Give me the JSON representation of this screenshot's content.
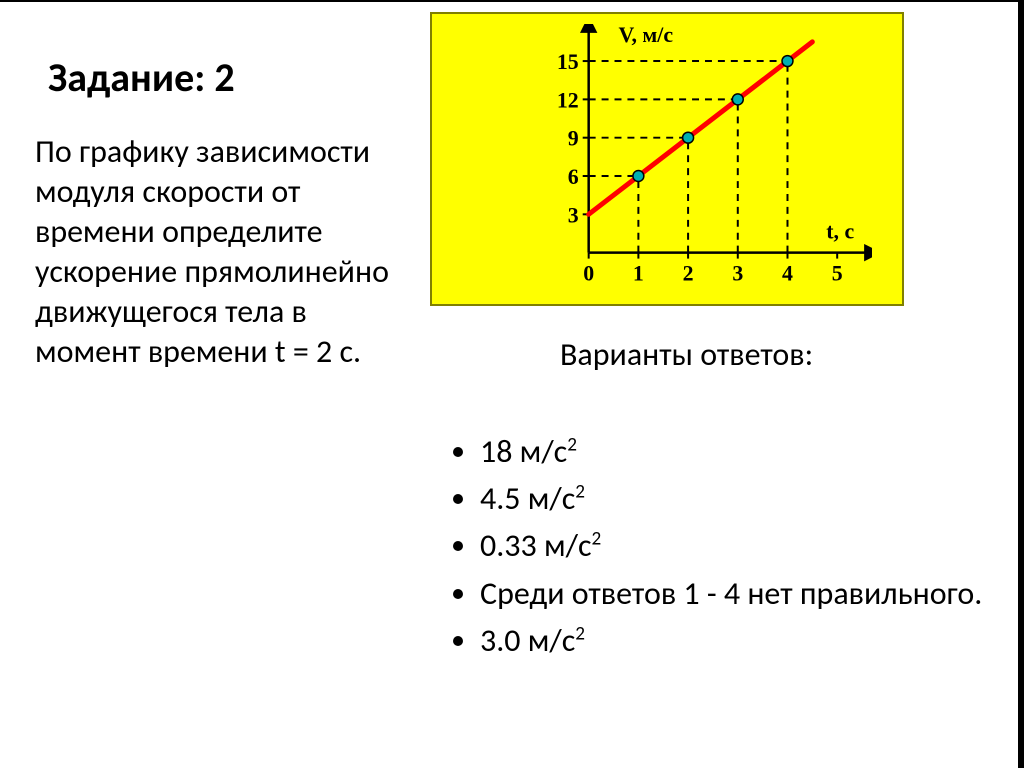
{
  "title": "Задание: 2",
  "question": "По графику зависимости модуля скорости от времени определите ускорение прямолинейно движущегося тела в момент времени t = 2 с.",
  "answers_title": "Варианты ответов:",
  "answers": [
    {
      "value": "18",
      "unit": "м/с",
      "exp": "2"
    },
    {
      "value": "4.5",
      "unit": "м/с",
      "exp": "2"
    },
    {
      "value": "0.33",
      "unit": "м/с",
      "exp": "2"
    },
    {
      "text": "Среди ответов 1 - 4 нет правильного."
    },
    {
      "value": "3.0",
      "unit": "м/с",
      "exp": "2"
    }
  ],
  "chart": {
    "type": "line",
    "background_color": "#ffff00",
    "border_color": "#808000",
    "axis_color": "#000000",
    "line_color": "#ff0000",
    "line_width": 5,
    "marker_color": "#00b0b0",
    "marker_border": "#000000",
    "grid_dash_color": "#000000",
    "grid_dash_pattern": "7 6",
    "y_label": "V, м/с",
    "x_label": "t, с",
    "label_fontsize": 22,
    "tick_fontsize": 22,
    "x_ticks": [
      0,
      1,
      2,
      3,
      4,
      5
    ],
    "y_ticks": [
      3,
      6,
      9,
      12,
      15
    ],
    "xlim": [
      0,
      5.5
    ],
    "ylim": [
      0,
      16.5
    ],
    "line_points": [
      {
        "x": 0,
        "y": 3
      },
      {
        "x": 4.5,
        "y": 16.5
      }
    ],
    "data_points": [
      {
        "x": 1,
        "y": 6
      },
      {
        "x": 2,
        "y": 9
      },
      {
        "x": 3,
        "y": 12
      },
      {
        "x": 4,
        "y": 15
      }
    ],
    "aspect_width": 340,
    "aspect_height": 270
  }
}
